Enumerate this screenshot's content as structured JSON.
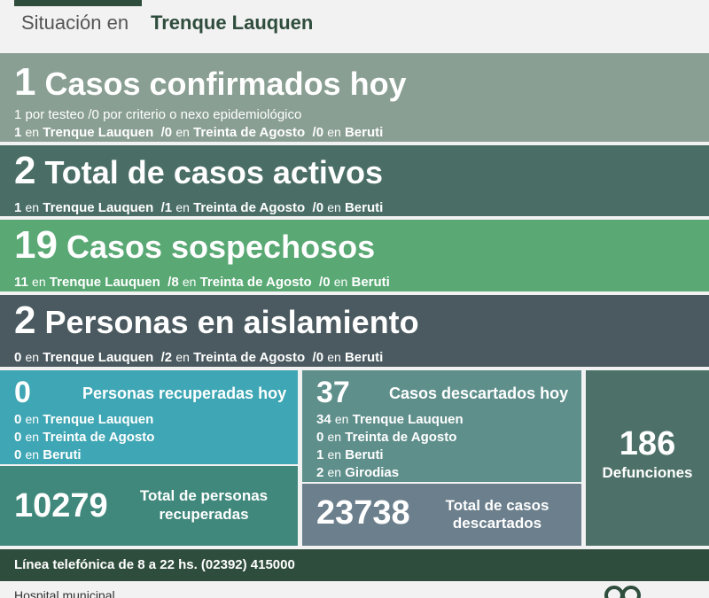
{
  "header": {
    "situation_label": "Situación en",
    "city": "Trenque Lauquen"
  },
  "confirmed": {
    "count": "1",
    "title": "Casos confirmados hoy",
    "line1": "1 por testeo  /0 por criterio o nexo epidemiológico",
    "towns": [
      {
        "n": "1",
        "en": "en",
        "name": "Trenque Lauquen"
      },
      {
        "n": "0",
        "en": "en",
        "name": "Treinta de Agosto"
      },
      {
        "n": "0",
        "en": "en",
        "name": "Beruti"
      }
    ]
  },
  "active": {
    "count": "2",
    "title": "Total de casos activos",
    "towns": [
      {
        "n": "1",
        "en": "en",
        "name": "Trenque Lauquen"
      },
      {
        "n": "1",
        "en": "en",
        "name": "Treinta de Agosto"
      },
      {
        "n": "0",
        "en": "en",
        "name": "Beruti"
      }
    ]
  },
  "suspected": {
    "count": "19",
    "title": "Casos sospechosos",
    "towns": [
      {
        "n": "11",
        "en": "en",
        "name": "Trenque Lauquen"
      },
      {
        "n": "8",
        "en": "en",
        "name": "Treinta de Agosto"
      },
      {
        "n": "0",
        "en": "en",
        "name": "Beruti"
      }
    ]
  },
  "isolation": {
    "count": "2",
    "title": "Personas en aislamiento",
    "towns": [
      {
        "n": "0",
        "en": "en",
        "name": "Trenque Lauquen"
      },
      {
        "n": "2",
        "en": "en",
        "name": "Treinta de Agosto"
      },
      {
        "n": "0",
        "en": "en",
        "name": "Beruti"
      }
    ]
  },
  "recovered_today": {
    "count": "0",
    "title": "Personas recuperadas hoy",
    "towns": [
      {
        "n": "0",
        "en": "en",
        "name": "Trenque Lauquen"
      },
      {
        "n": "0",
        "en": "en",
        "name": "Treinta de Agosto"
      },
      {
        "n": "0",
        "en": "en",
        "name": "Beruti"
      }
    ]
  },
  "recovered_total": {
    "count": "10279",
    "title_line1": "Total de personas",
    "title_line2": "recuperadas"
  },
  "discarded_today": {
    "count": "37",
    "title": "Casos descartados hoy",
    "towns": [
      {
        "n": "34",
        "en": "en",
        "name": "Trenque Lauquen"
      },
      {
        "n": "0",
        "en": "en",
        "name": "Treinta de Agosto"
      },
      {
        "n": "1",
        "en": "en",
        "name": "Beruti"
      },
      {
        "n": "2",
        "en": "en",
        "name": "Girodias"
      }
    ]
  },
  "discarded_total": {
    "count": "23738",
    "title_line1": "Total de casos",
    "title_line2": "descartados"
  },
  "deaths": {
    "count": "186",
    "title": "Defunciones"
  },
  "footer": {
    "phone_line": "Línea telefónica de 8 a 22 hs. (02392) 415000",
    "hospital": "Hospital municipal"
  },
  "colors": {
    "dark_green": "#2f4d3d",
    "confirmed_bg": "#8a9f93",
    "active_bg": "#4a6e66",
    "suspected_bg": "#5aa975",
    "isolation_bg": "#4a5a60",
    "recovered_bg": "#3ea6b4",
    "discarded_bg": "#5e8f8b",
    "deaths_bg": "#4d7168"
  }
}
